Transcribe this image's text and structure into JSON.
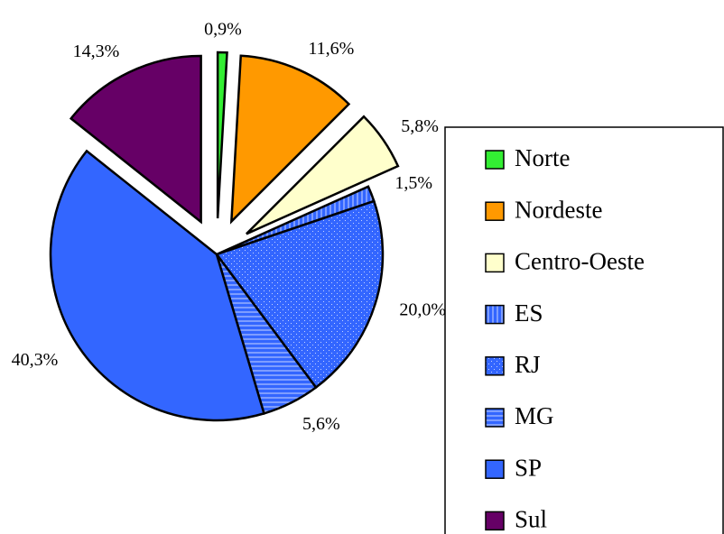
{
  "chart_data": {
    "type": "pie",
    "categories": [
      "Norte",
      "Nordeste",
      "Centro-Oeste",
      "ES",
      "RJ",
      "MG",
      "SP",
      "Sul"
    ],
    "values": [
      0.9,
      11.6,
      5.8,
      1.5,
      20.0,
      5.6,
      40.3,
      14.3
    ],
    "value_labels": [
      "0,9%",
      "11,6%",
      "5,8%",
      "1,5%",
      "20,0%",
      "5,6%",
      "40,3%",
      "14,3%"
    ],
    "colors": [
      "#33ee33",
      "#ff9900",
      "#ffffcc",
      "#3366ff",
      "#3366ff",
      "#3366ff",
      "#3366ff",
      "#660066"
    ],
    "patterns": [
      "solid",
      "solid",
      "solid",
      "vertical-stripes",
      "dots",
      "horizontal-stripes",
      "solid",
      "solid"
    ],
    "exploded": [
      true,
      true,
      true,
      false,
      false,
      false,
      false,
      true
    ],
    "legend": "right"
  }
}
